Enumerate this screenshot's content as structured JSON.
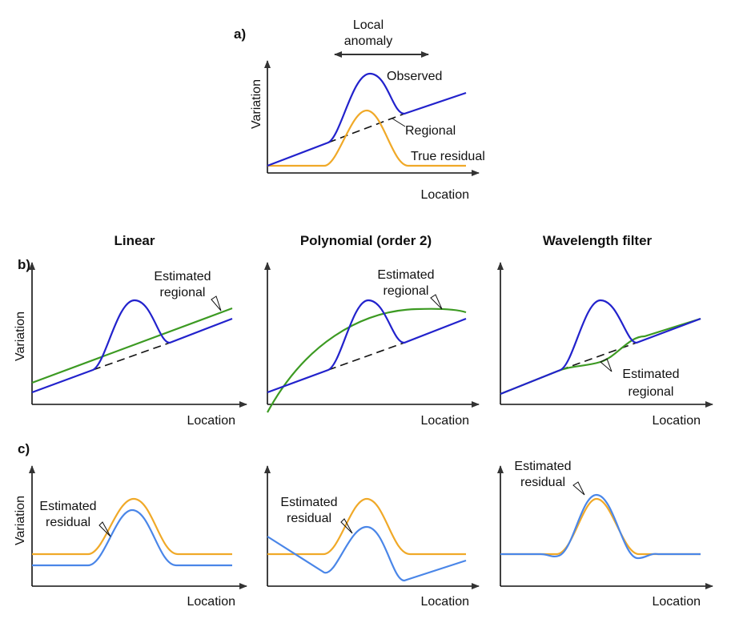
{
  "colors": {
    "observed": "#2222cc",
    "residual_true": "#f0a928",
    "estimated_residual": "#4a86e8",
    "estimated_regional": "#3c9a22",
    "regional": "#111111"
  },
  "panel_a": {
    "label": "a)",
    "anomaly_label_1": "Local",
    "anomaly_label_2": "anomaly",
    "observed": "Observed",
    "regional": "Regional",
    "true_residual": "True residual",
    "xlabel": "Location",
    "ylabel": "Variation"
  },
  "panel_b": {
    "label": "b)",
    "ylabel": "Variation",
    "xlabel": "Location",
    "columns": [
      {
        "title": "Linear",
        "annot_1": "Estimated",
        "annot_2": "regional"
      },
      {
        "title": "Polynomial (order 2)",
        "annot_1": "Estimated",
        "annot_2": "regional"
      },
      {
        "title": "Wavelength filter",
        "annot_1": "Estimated",
        "annot_2": "regional"
      }
    ]
  },
  "panel_c": {
    "label": "c)",
    "ylabel": "Variation",
    "xlabel": "Location",
    "columns": [
      {
        "annot_1": "Estimated",
        "annot_2": "residual"
      },
      {
        "annot_1": "Estimated",
        "annot_2": "residual"
      },
      {
        "annot_1": "Estimated",
        "annot_2": "residual"
      }
    ]
  }
}
